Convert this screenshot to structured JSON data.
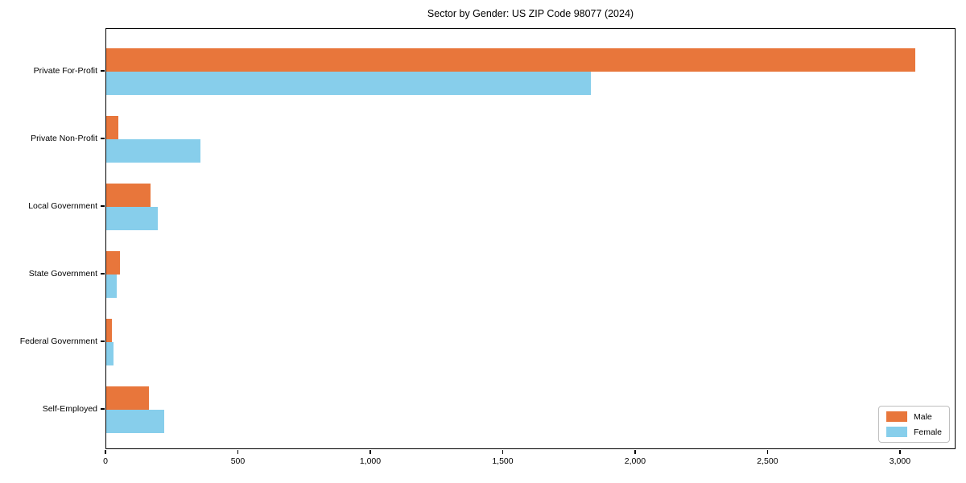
{
  "figure": {
    "background": "#ffffff",
    "title": "Sector by Gender: US ZIP Code 98077 (2024)"
  },
  "chart_data": {
    "type": "bar",
    "orientation": "horizontal",
    "title": "Sector by Gender: US ZIP Code 98077 (2024)",
    "categories": [
      "Private For-Profit",
      "Private Non-Profit",
      "Local Government",
      "State Government",
      "Federal Government",
      "Self-Employed"
    ],
    "series": [
      {
        "name": "Male",
        "color": "#e8763b",
        "values": [
          3055,
          46,
          166,
          53,
          21,
          162
        ]
      },
      {
        "name": "Female",
        "color": "#87ceeb",
        "values": [
          1830,
          355,
          196,
          40,
          27,
          218
        ]
      }
    ],
    "xlabel": "",
    "ylabel": "",
    "xlim": [
      0,
      3210
    ],
    "xticks": [
      0,
      500,
      1000,
      1500,
      2000,
      2500,
      3000
    ],
    "xtick_labels": [
      "0",
      "500",
      "1,000",
      "1,500",
      "2,000",
      "2,500",
      "3,000"
    ],
    "grid": false,
    "legend": {
      "position": "lower right"
    },
    "colors": {
      "male": "#e8763b",
      "female": "#87ceeb",
      "axis": "#000000",
      "legend_border": "#bfbfbf"
    }
  }
}
